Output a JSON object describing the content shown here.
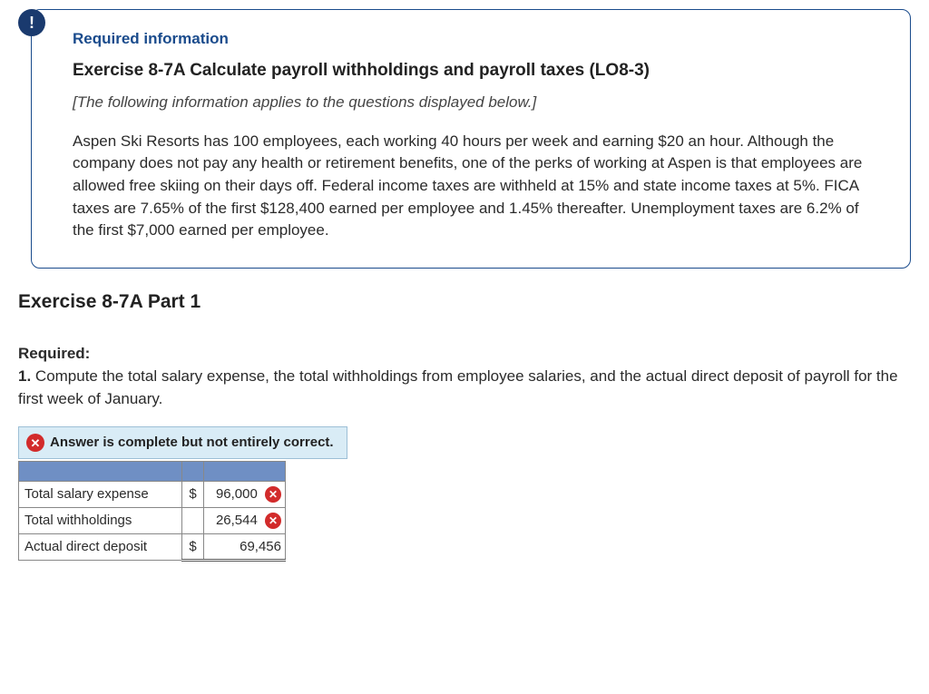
{
  "info_badge_char": "!",
  "required_heading": "Required information",
  "exercise_title": "Exercise 8-7A Calculate payroll withholdings and payroll taxes (LO8-3)",
  "applies_note": "[The following information applies to the questions displayed below.]",
  "problem_text": "Aspen Ski Resorts has 100 employees, each working 40 hours per week and earning $20 an hour. Although the company does not pay any health or retirement benefits, one of the perks of working at Aspen is that employees are allowed free skiing on their days off. Federal income taxes are withheld at 15% and state income taxes at 5%. FICA taxes are 7.65% of the first $128,400 earned per employee and 1.45% thereafter. Unemployment taxes are 6.2% of the first $7,000 earned per employee.",
  "part_title": "Exercise 8-7A Part 1",
  "required_label": "Required:",
  "q1_number": "1.",
  "q1_text": " Compute the total salary expense, the total withholdings from employee salaries, and the actual direct deposit of payroll for the first week of January.",
  "feedback_text": "Answer is complete but not entirely correct.",
  "table": {
    "rows": [
      {
        "label": "Total salary expense",
        "currency": "$",
        "value": "96,000",
        "wrong": true
      },
      {
        "label": "Total withholdings",
        "currency": "",
        "value": "26,544",
        "wrong": true
      },
      {
        "label": "Actual direct deposit",
        "currency": "$",
        "value": "69,456",
        "wrong": false
      }
    ]
  },
  "colors": {
    "info_border": "#1a4b8c",
    "badge_bg": "#1a3a6e",
    "feedback_bg": "#d9ecf6",
    "feedback_border": "#9dbfd6",
    "wrong_red": "#d22b2b",
    "table_header_bg": "#6f8fc4"
  }
}
